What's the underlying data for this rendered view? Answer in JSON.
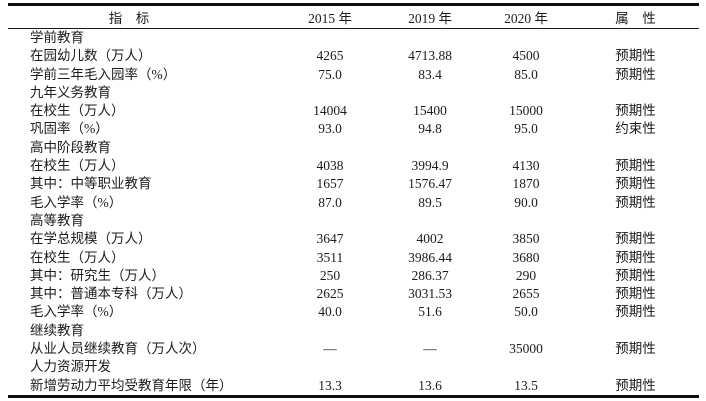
{
  "page": {
    "background_color": "#ffffff",
    "text_color": "#1c1c1c",
    "rule_color": "#0e0e0e"
  },
  "table": {
    "columns": [
      {
        "key": "indicator",
        "label": "指　标"
      },
      {
        "key": "y2015",
        "label": "2015 年"
      },
      {
        "key": "y2019",
        "label": "2019 年"
      },
      {
        "key": "y2020",
        "label": "2020 年"
      },
      {
        "key": "attribute",
        "label": "属　性"
      }
    ],
    "rows": [
      {
        "type": "section",
        "indicator": "学前教育",
        "y2015": "",
        "y2019": "",
        "y2020": "",
        "attribute": ""
      },
      {
        "type": "data",
        "indicator": "在园幼儿数（万人）",
        "y2015": "4265",
        "y2019": "4713.88",
        "y2020": "4500",
        "attribute": "预期性"
      },
      {
        "type": "data",
        "indicator": "学前三年毛入园率（%）",
        "y2015": "75.0",
        "y2019": "83.4",
        "y2020": "85.0",
        "attribute": "预期性"
      },
      {
        "type": "section",
        "indicator": "九年义务教育",
        "y2015": "",
        "y2019": "",
        "y2020": "",
        "attribute": ""
      },
      {
        "type": "data",
        "indicator": "在校生（万人）",
        "y2015": "14004",
        "y2019": "15400",
        "y2020": "15000",
        "attribute": "预期性"
      },
      {
        "type": "data",
        "indicator": "巩固率（%）",
        "y2015": "93.0",
        "y2019": "94.8",
        "y2020": "95.0",
        "attribute": "约束性"
      },
      {
        "type": "section",
        "indicator": "高中阶段教育",
        "y2015": "",
        "y2019": "",
        "y2020": "",
        "attribute": ""
      },
      {
        "type": "data",
        "indicator": "在校生（万人）",
        "y2015": "4038",
        "y2019": "3994.9",
        "y2020": "4130",
        "attribute": "预期性"
      },
      {
        "type": "data",
        "indicator": "其中：中等职业教育",
        "y2015": "1657",
        "y2019": "1576.47",
        "y2020": "1870",
        "attribute": "预期性"
      },
      {
        "type": "data",
        "indicator": "毛入学率（%）",
        "y2015": "87.0",
        "y2019": "89.5",
        "y2020": "90.0",
        "attribute": "预期性"
      },
      {
        "type": "section",
        "indicator": "高等教育",
        "y2015": "",
        "y2019": "",
        "y2020": "",
        "attribute": ""
      },
      {
        "type": "data",
        "indicator": "在学总规模（万人）",
        "y2015": "3647",
        "y2019": "4002",
        "y2020": "3850",
        "attribute": "预期性"
      },
      {
        "type": "data",
        "indicator": "在校生（万人）",
        "y2015": "3511",
        "y2019": "3986.44",
        "y2020": "3680",
        "attribute": "预期性"
      },
      {
        "type": "data",
        "indicator": "其中：研究生（万人）",
        "y2015": "250",
        "y2019": "286.37",
        "y2020": "290",
        "attribute": "预期性"
      },
      {
        "type": "data",
        "indicator": "其中：普通本专科（万人）",
        "y2015": "2625",
        "y2019": "3031.53",
        "y2020": "2655",
        "attribute": "预期性"
      },
      {
        "type": "data",
        "indicator": "毛入学率（%）",
        "y2015": "40.0",
        "y2019": "51.6",
        "y2020": "50.0",
        "attribute": "预期性"
      },
      {
        "type": "section",
        "indicator": "继续教育",
        "y2015": "",
        "y2019": "",
        "y2020": "",
        "attribute": ""
      },
      {
        "type": "data",
        "indicator": "从业人员继续教育（万人次）",
        "y2015": "—",
        "y2019": "—",
        "y2020": "35000",
        "attribute": "预期性"
      },
      {
        "type": "section",
        "indicator": "人力资源开发",
        "y2015": "",
        "y2019": "",
        "y2020": "",
        "attribute": ""
      },
      {
        "type": "data",
        "indicator": "新增劳动力平均受教育年限（年）",
        "y2015": "13.3",
        "y2019": "13.6",
        "y2020": "13.5",
        "attribute": "预期性"
      }
    ]
  }
}
